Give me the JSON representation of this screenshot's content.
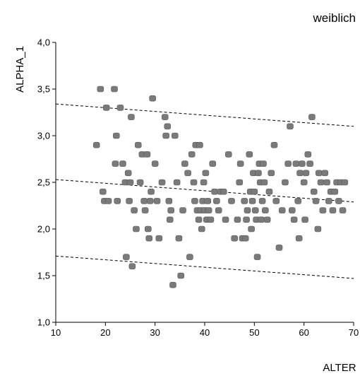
{
  "chart_data": {
    "type": "scatter",
    "title": "weiblich",
    "xlabel": "ALTER",
    "ylabel": "ALPHA_1",
    "xlim": [
      10,
      70
    ],
    "ylim": [
      1.0,
      4.0
    ],
    "xticks": [
      10,
      20,
      30,
      40,
      50,
      60,
      70
    ],
    "xtick_labels": [
      "10",
      "20",
      "30",
      "40",
      "50",
      "60",
      "70"
    ],
    "yticks": [
      1.0,
      1.5,
      2.0,
      2.5,
      3.0,
      3.5,
      4.0
    ],
    "ytick_labels": [
      "1,0",
      "1,5",
      "2,0",
      "2,5",
      "3,0",
      "3,5",
      "4,0"
    ],
    "grid": false,
    "marker_color": "#7a7a7a",
    "series": [
      {
        "points": [
          [
            18.2,
            2.9
          ],
          [
            19.0,
            3.5
          ],
          [
            19.5,
            2.4
          ],
          [
            19.8,
            2.3
          ],
          [
            20.2,
            3.3
          ],
          [
            20.6,
            2.3
          ],
          [
            21.8,
            3.5
          ],
          [
            22.0,
            2.7
          ],
          [
            22.2,
            3.0
          ],
          [
            22.4,
            2.3
          ],
          [
            23.0,
            3.3
          ],
          [
            23.5,
            2.7
          ],
          [
            24.0,
            2.5
          ],
          [
            24.2,
            1.7
          ],
          [
            24.6,
            2.6
          ],
          [
            24.8,
            2.3
          ],
          [
            25.0,
            2.5
          ],
          [
            25.2,
            3.2
          ],
          [
            25.4,
            1.6
          ],
          [
            25.8,
            2.2
          ],
          [
            26.2,
            2.0
          ],
          [
            26.6,
            2.9
          ],
          [
            27.0,
            2.5
          ],
          [
            27.4,
            2.8
          ],
          [
            27.8,
            2.3
          ],
          [
            28.0,
            2.2
          ],
          [
            28.4,
            2.8
          ],
          [
            28.6,
            2.0
          ],
          [
            28.8,
            1.9
          ],
          [
            29.0,
            2.3
          ],
          [
            29.2,
            2.4
          ],
          [
            29.5,
            3.4
          ],
          [
            30.0,
            2.7
          ],
          [
            30.4,
            2.3
          ],
          [
            30.8,
            1.9
          ],
          [
            31.4,
            2.5
          ],
          [
            32.0,
            3.2
          ],
          [
            32.2,
            3.0
          ],
          [
            32.5,
            3.1
          ],
          [
            32.8,
            2.3
          ],
          [
            33.0,
            2.1
          ],
          [
            33.2,
            2.2
          ],
          [
            33.6,
            1.4
          ],
          [
            34.0,
            3.0
          ],
          [
            34.4,
            2.5
          ],
          [
            34.8,
            1.9
          ],
          [
            35.2,
            1.5
          ],
          [
            35.6,
            2.2
          ],
          [
            36.0,
            2.7
          ],
          [
            36.6,
            2.6
          ],
          [
            37.0,
            1.7
          ],
          [
            37.4,
            2.8
          ],
          [
            37.8,
            2.5
          ],
          [
            38.0,
            2.3
          ],
          [
            38.2,
            2.9
          ],
          [
            38.5,
            2.2
          ],
          [
            38.8,
            2.1
          ],
          [
            39.0,
            2.9
          ],
          [
            39.2,
            2.2
          ],
          [
            39.4,
            2.0
          ],
          [
            39.6,
            2.3
          ],
          [
            39.8,
            2.5
          ],
          [
            40.0,
            2.2
          ],
          [
            40.2,
            2.6
          ],
          [
            40.4,
            2.1
          ],
          [
            40.6,
            2.3
          ],
          [
            40.8,
            2.2
          ],
          [
            41.2,
            2.1
          ],
          [
            41.6,
            2.7
          ],
          [
            42.0,
            2.4
          ],
          [
            42.4,
            2.3
          ],
          [
            42.8,
            2.2
          ],
          [
            43.2,
            2.4
          ],
          [
            43.8,
            2.4
          ],
          [
            44.2,
            2.1
          ],
          [
            44.8,
            2.8
          ],
          [
            45.4,
            2.3
          ],
          [
            46.0,
            1.9
          ],
          [
            46.6,
            2.1
          ],
          [
            47.0,
            2.5
          ],
          [
            47.2,
            2.7
          ],
          [
            47.6,
            1.9
          ],
          [
            48.0,
            2.3
          ],
          [
            48.2,
            1.9
          ],
          [
            48.4,
            2.1
          ],
          [
            48.6,
            2.2
          ],
          [
            49.0,
            2.8
          ],
          [
            49.2,
            2.4
          ],
          [
            49.4,
            2.0
          ],
          [
            49.6,
            2.3
          ],
          [
            49.8,
            2.6
          ],
          [
            50.0,
            2.4
          ],
          [
            50.2,
            2.2
          ],
          [
            50.4,
            2.1
          ],
          [
            50.6,
            1.7
          ],
          [
            50.8,
            2.6
          ],
          [
            51.0,
            2.7
          ],
          [
            51.2,
            2.5
          ],
          [
            51.4,
            2.1
          ],
          [
            51.6,
            2.3
          ],
          [
            51.8,
            2.7
          ],
          [
            52.0,
            2.5
          ],
          [
            52.2,
            2.2
          ],
          [
            52.6,
            2.1
          ],
          [
            53.0,
            2.4
          ],
          [
            53.4,
            2.6
          ],
          [
            54.0,
            2.9
          ],
          [
            54.4,
            2.3
          ],
          [
            55.0,
            1.8
          ],
          [
            55.6,
            2.2
          ],
          [
            56.2,
            2.5
          ],
          [
            56.8,
            2.7
          ],
          [
            57.2,
            3.1
          ],
          [
            57.6,
            2.2
          ],
          [
            58.0,
            2.1
          ],
          [
            58.4,
            2.7
          ],
          [
            58.8,
            2.3
          ],
          [
            59.0,
            1.9
          ],
          [
            59.2,
            2.6
          ],
          [
            59.6,
            2.7
          ],
          [
            60.0,
            2.5
          ],
          [
            60.2,
            2.1
          ],
          [
            60.4,
            2.6
          ],
          [
            60.8,
            2.8
          ],
          [
            61.2,
            2.7
          ],
          [
            61.6,
            3.2
          ],
          [
            62.0,
            2.4
          ],
          [
            62.4,
            2.3
          ],
          [
            62.8,
            2.0
          ],
          [
            63.0,
            2.6
          ],
          [
            63.4,
            2.5
          ],
          [
            63.8,
            2.2
          ],
          [
            64.2,
            2.6
          ],
          [
            64.6,
            2.5
          ],
          [
            65.0,
            2.3
          ],
          [
            65.4,
            2.4
          ],
          [
            65.8,
            2.2
          ],
          [
            66.2,
            2.4
          ],
          [
            66.6,
            2.5
          ],
          [
            67.0,
            2.3
          ],
          [
            67.4,
            2.5
          ],
          [
            67.8,
            2.2
          ],
          [
            68.2,
            2.5
          ]
        ]
      }
    ],
    "reference_lines": [
      {
        "style": "dashed",
        "x": [
          10,
          70
        ],
        "y": [
          3.34,
          3.1
        ]
      },
      {
        "style": "dashed",
        "x": [
          10,
          70
        ],
        "y": [
          2.53,
          2.29
        ]
      },
      {
        "style": "dashed",
        "x": [
          10,
          70
        ],
        "y": [
          1.71,
          1.47
        ]
      }
    ]
  }
}
